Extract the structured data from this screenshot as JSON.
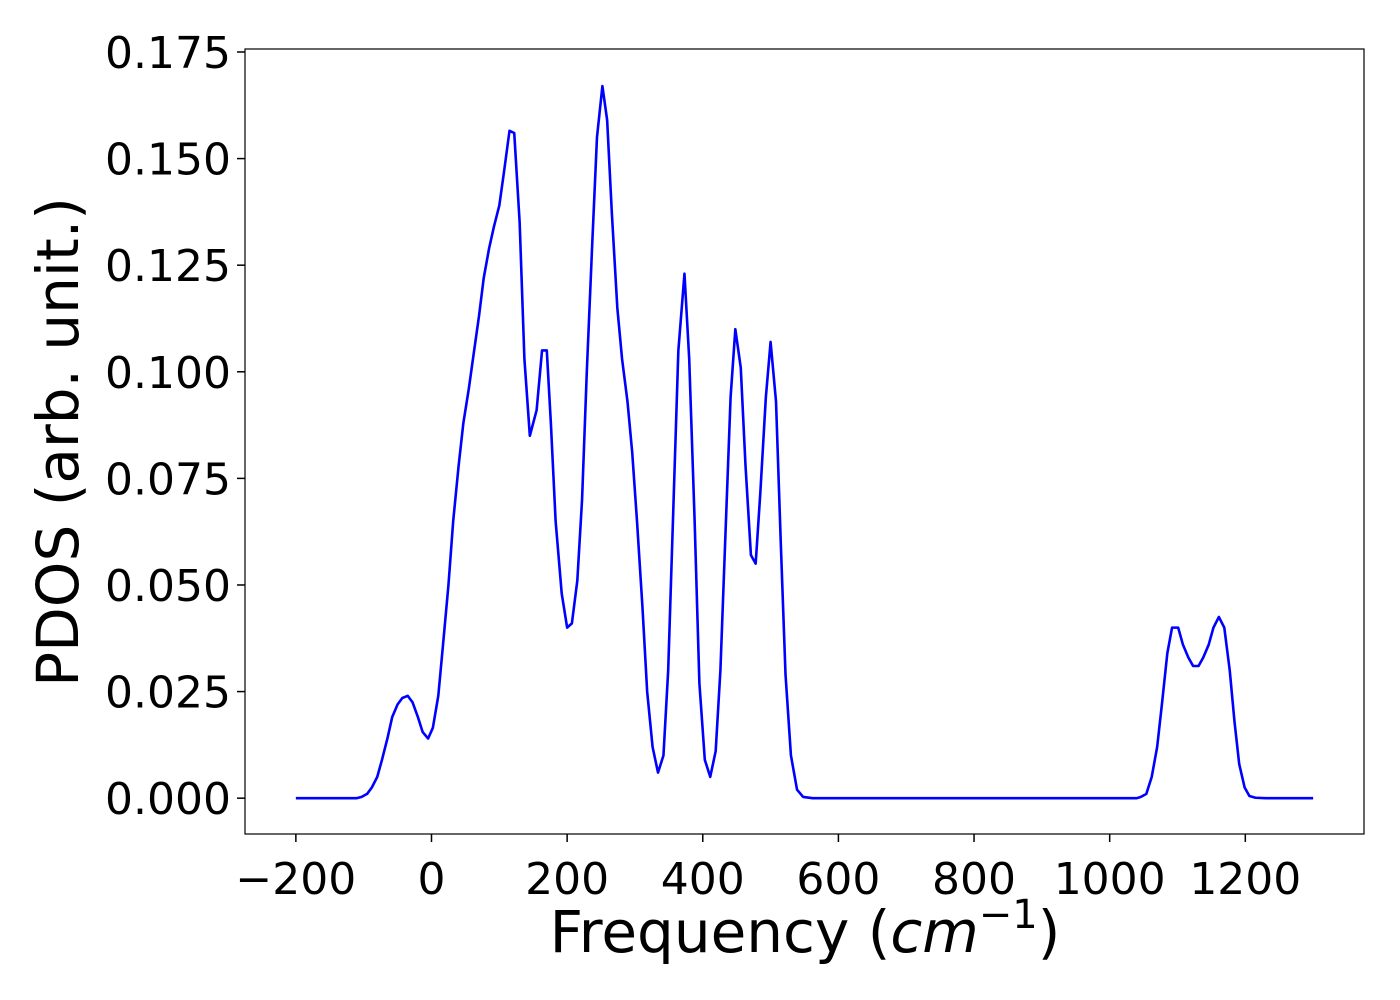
{
  "chart_data": {
    "type": "line",
    "ylabel": "PDOS (arb. unit.)",
    "xlabel": {
      "prefix": "Frequency (",
      "math": "cm",
      "sup": "−1",
      "suffix": ")"
    },
    "color": "#0000ff",
    "xlim": [
      -275,
      1375
    ],
    "ylim": [
      -0.0084,
      0.1757
    ],
    "xticks": [
      {
        "value": -200,
        "label": "−200"
      },
      0,
      200,
      400,
      600,
      800,
      1000,
      1200
    ],
    "yticks": [
      {
        "value": 0,
        "label": "0.000"
      },
      {
        "value": 0.025,
        "label": "0.025"
      },
      {
        "value": 0.05,
        "label": "0.050"
      },
      {
        "value": 0.075,
        "label": "0.075"
      },
      {
        "value": 0.1,
        "label": "0.100"
      },
      {
        "value": 0.125,
        "label": "0.125"
      },
      {
        "value": 0.15,
        "label": "0.150"
      },
      {
        "value": 0.175,
        "label": "0.175"
      }
    ],
    "x": [
      -200,
      -110,
      -103,
      -95,
      -88,
      -80,
      -73,
      -65,
      -58,
      -50,
      -43,
      -35,
      -28,
      -20,
      -13,
      -5,
      2,
      10,
      17,
      25,
      32,
      40,
      47,
      55,
      62,
      70,
      77,
      85,
      92,
      100,
      107,
      115,
      122,
      130,
      137,
      145,
      155,
      163,
      170,
      176,
      183,
      192,
      200,
      207,
      215,
      222,
      229,
      237,
      244,
      252,
      259,
      266,
      274,
      281,
      289,
      296,
      303,
      311,
      318,
      326,
      334,
      342,
      349,
      357,
      364,
      373,
      380,
      388,
      395,
      403,
      411,
      419,
      426,
      433,
      441,
      448,
      456,
      463,
      471,
      478,
      485,
      493,
      500,
      508,
      515,
      522,
      530,
      539,
      548,
      562,
      1040,
      1046,
      1054,
      1062,
      1070,
      1077,
      1085,
      1092,
      1101,
      1108,
      1116,
      1123,
      1131,
      1138,
      1146,
      1153,
      1161,
      1169,
      1177,
      1184,
      1191,
      1199,
      1206,
      1215,
      1230,
      1300
    ],
    "values": [
      0,
      0,
      0.0003,
      0.001,
      0.0025,
      0.005,
      0.009,
      0.014,
      0.019,
      0.022,
      0.0235,
      0.024,
      0.0225,
      0.019,
      0.0155,
      0.014,
      0.0165,
      0.024,
      0.036,
      0.05,
      0.065,
      0.078,
      0.088,
      0.096,
      0.104,
      0.113,
      0.122,
      0.129,
      0.134,
      0.139,
      0.147,
      0.1565,
      0.156,
      0.135,
      0.103,
      0.085,
      0.091,
      0.105,
      0.105,
      0.088,
      0.065,
      0.048,
      0.04,
      0.041,
      0.051,
      0.07,
      0.1,
      0.13,
      0.155,
      0.167,
      0.159,
      0.137,
      0.115,
      0.103,
      0.093,
      0.081,
      0.065,
      0.045,
      0.025,
      0.012,
      0.006,
      0.01,
      0.03,
      0.07,
      0.105,
      0.123,
      0.103,
      0.065,
      0.027,
      0.009,
      0.005,
      0.011,
      0.03,
      0.06,
      0.094,
      0.11,
      0.101,
      0.078,
      0.057,
      0.055,
      0.072,
      0.094,
      0.107,
      0.093,
      0.06,
      0.029,
      0.01,
      0.002,
      0.0003,
      0,
      0,
      0.0003,
      0.001,
      0.005,
      0.012,
      0.022,
      0.034,
      0.04,
      0.04,
      0.036,
      0.033,
      0.031,
      0.031,
      0.033,
      0.036,
      0.04,
      0.0425,
      0.04,
      0.03,
      0.018,
      0.008,
      0.0025,
      0.0005,
      0.0001,
      0,
      0
    ]
  }
}
